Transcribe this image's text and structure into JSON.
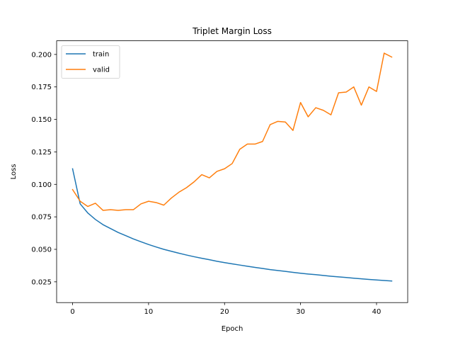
{
  "chart_data": {
    "type": "line",
    "title": "Triplet Margin Loss",
    "xlabel": "Epoch",
    "ylabel": "Loss",
    "xlim": [
      -2.1,
      44.1
    ],
    "ylim": [
      0.009,
      0.2105
    ],
    "xticks": [
      0,
      10,
      20,
      30,
      40
    ],
    "yticks": [
      0.025,
      0.05,
      0.075,
      0.1,
      0.125,
      0.15,
      0.175,
      0.2
    ],
    "ytick_labels": [
      "0.025",
      "0.050",
      "0.075",
      "0.100",
      "0.125",
      "0.150",
      "0.175",
      "0.200"
    ],
    "grid": false,
    "legend_position": "top-left",
    "x": [
      0,
      1,
      2,
      3,
      4,
      5,
      6,
      7,
      8,
      9,
      10,
      11,
      12,
      13,
      14,
      15,
      16,
      17,
      18,
      19,
      20,
      21,
      22,
      23,
      24,
      25,
      26,
      27,
      28,
      29,
      30,
      31,
      32,
      33,
      34,
      35,
      36,
      37,
      38,
      39,
      40,
      41,
      42
    ],
    "series": [
      {
        "name": "train",
        "color": "#1f77b4",
        "values": [
          0.112,
          0.085,
          0.078,
          0.073,
          0.069,
          0.066,
          0.063,
          0.0605,
          0.058,
          0.0558,
          0.0537,
          0.0518,
          0.05,
          0.0485,
          0.047,
          0.0456,
          0.0443,
          0.0431,
          0.042,
          0.0408,
          0.0398,
          0.0388,
          0.0379,
          0.037,
          0.0361,
          0.0353,
          0.0344,
          0.0337,
          0.033,
          0.0323,
          0.0316,
          0.031,
          0.0305,
          0.0299,
          0.0293,
          0.0288,
          0.0283,
          0.0278,
          0.0273,
          0.0268,
          0.0264,
          0.026,
          0.0256
        ]
      },
      {
        "name": "valid",
        "color": "#ff7f0e",
        "values": [
          0.096,
          0.087,
          0.083,
          0.0855,
          0.08,
          0.0805,
          0.08,
          0.0805,
          0.0805,
          0.085,
          0.087,
          0.086,
          0.084,
          0.0895,
          0.094,
          0.0975,
          0.102,
          0.1075,
          0.105,
          0.11,
          0.112,
          0.116,
          0.127,
          0.131,
          0.131,
          0.133,
          0.146,
          0.1485,
          0.148,
          0.1415,
          0.163,
          0.152,
          0.159,
          0.157,
          0.1535,
          0.1705,
          0.171,
          0.175,
          0.161,
          0.175,
          0.1715,
          0.201,
          0.198
        ]
      }
    ]
  }
}
